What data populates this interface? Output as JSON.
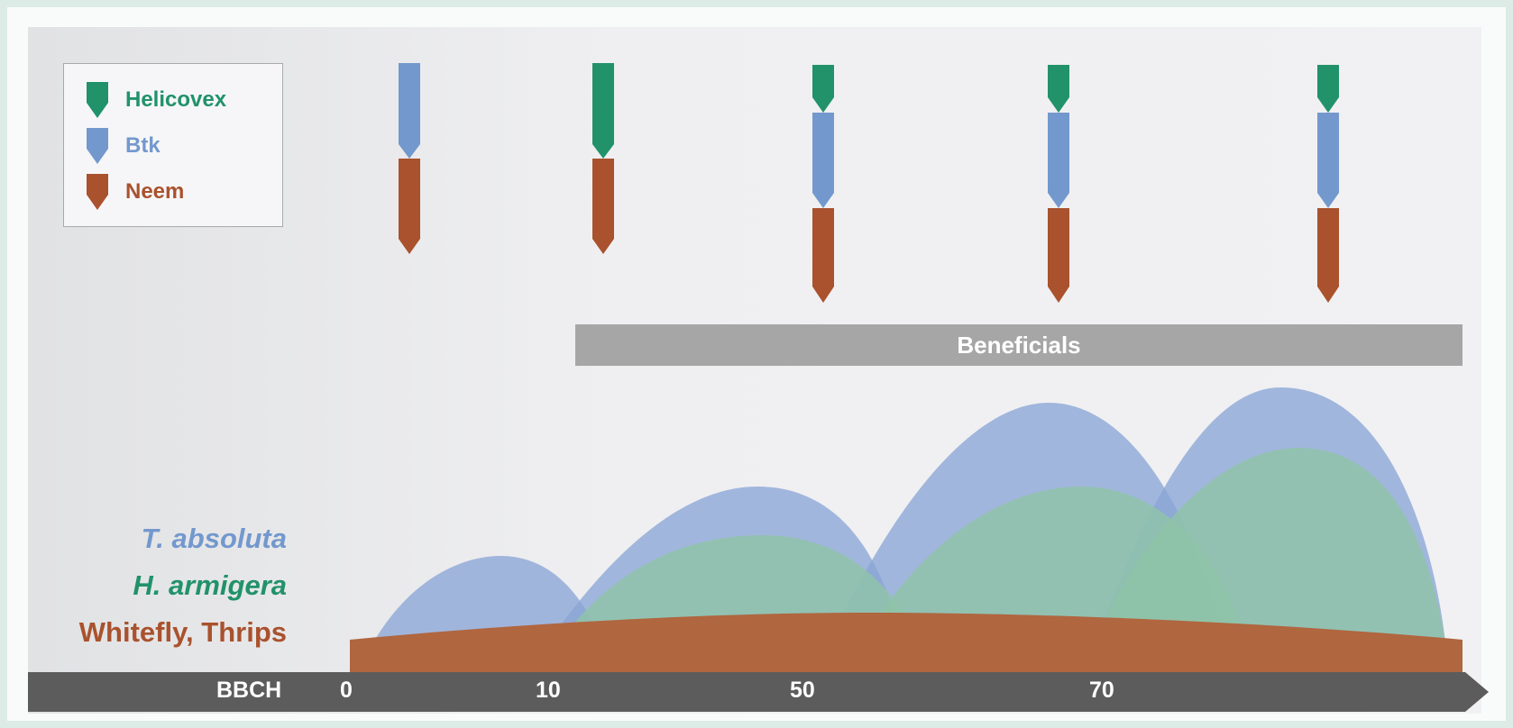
{
  "legend": {
    "items": [
      {
        "label": "Helicovex",
        "color": "#21926a",
        "icon": "helicovex-marker-icon"
      },
      {
        "label": "Btk",
        "color": "#7398cd",
        "icon": "btk-marker-icon"
      },
      {
        "label": "Neem",
        "color": "#a9522d",
        "icon": "neem-marker-icon"
      }
    ]
  },
  "species": {
    "t_absoluta": {
      "label": "T. absoluta",
      "color": "#7398cd"
    },
    "h_armigera": {
      "label": "H. armigera",
      "color": "#21926a"
    },
    "whitefly_thrips": {
      "label": "Whitefly, Thrips",
      "color": "#a9522d"
    }
  },
  "beneficials_label": "Beneficials",
  "axis": {
    "title": "BBCH",
    "ticks": [
      "0",
      "10",
      "50",
      "70"
    ]
  },
  "colors": {
    "axis_bar": "#5c5c5c",
    "beneficials_bar": "#a6a6a6",
    "t_absoluta_fill": "#8aa5d6",
    "h_armigera_fill": "#8fc4a8",
    "whitefly_fill": "#b0663f"
  }
}
